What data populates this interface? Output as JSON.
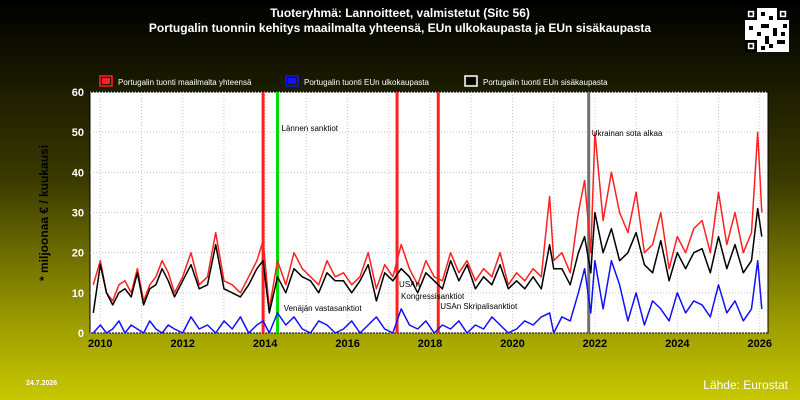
{
  "header": {
    "title": "Tuoteryhmä: Lannoitteet, valmistetut (Sitc 56)",
    "subtitle": "Portugalin tuonnin kehitys maailmalta yhteensä, EUn ulkokaupasta ja EUn sisäkaupasta"
  },
  "footer": {
    "date": "24.7.2026",
    "source": "Lähde: Eurostat"
  },
  "colors": {
    "world": "#ff2020",
    "extra_eu": "#1010ff",
    "intra_eu": "#000000",
    "green_marker": "#00dd00",
    "grey_marker": "#707070"
  },
  "chart_data": {
    "type": "line",
    "ylabel": "* miljoonaa € / kuukausi",
    "ylim": [
      0,
      60
    ],
    "yticks": [
      0,
      10,
      20,
      30,
      40,
      50,
      60
    ],
    "xlim": [
      2009.75,
      2026.2
    ],
    "xticks": [
      "2010",
      "2012",
      "2014",
      "2016",
      "2018",
      "2020",
      "2022",
      "2024",
      "2026"
    ],
    "grid": true,
    "legend_position": "top",
    "series": [
      {
        "name": "Portugalin tuonti maailmalta yhteensä",
        "color": "#ff2020",
        "x": [
          2009.83,
          2010.0,
          2010.15,
          2010.3,
          2010.45,
          2010.6,
          2010.75,
          2010.9,
          2011.05,
          2011.2,
          2011.35,
          2011.5,
          2011.65,
          2011.8,
          2012.0,
          2012.2,
          2012.4,
          2012.6,
          2012.8,
          2013.0,
          2013.2,
          2013.4,
          2013.6,
          2013.8,
          2013.95,
          2014.1,
          2014.3,
          2014.5,
          2014.7,
          2014.9,
          2015.1,
          2015.3,
          2015.5,
          2015.7,
          2015.9,
          2016.1,
          2016.3,
          2016.5,
          2016.7,
          2016.9,
          2017.1,
          2017.3,
          2017.5,
          2017.7,
          2017.9,
          2018.1,
          2018.3,
          2018.5,
          2018.7,
          2018.9,
          2019.1,
          2019.3,
          2019.5,
          2019.7,
          2019.9,
          2020.1,
          2020.3,
          2020.5,
          2020.7,
          2020.9,
          2021.0,
          2021.2,
          2021.4,
          2021.6,
          2021.75,
          2021.9,
          2022.0,
          2022.2,
          2022.4,
          2022.6,
          2022.8,
          2023.0,
          2023.2,
          2023.4,
          2023.6,
          2023.8,
          2024.0,
          2024.2,
          2024.4,
          2024.6,
          2024.8,
          2025.0,
          2025.2,
          2025.4,
          2025.6,
          2025.8,
          2025.95,
          2026.05
        ],
        "values": [
          12,
          18,
          10,
          8,
          12,
          13,
          10,
          16,
          8,
          12,
          14,
          18,
          15,
          10,
          14,
          20,
          12,
          14,
          25,
          13,
          12,
          10,
          14,
          18,
          23,
          6,
          18,
          12,
          20,
          16,
          14,
          12,
          18,
          14,
          15,
          12,
          14,
          20,
          11,
          17,
          14,
          22,
          16,
          12,
          18,
          14,
          13,
          20,
          15,
          18,
          13,
          16,
          14,
          20,
          12,
          15,
          13,
          16,
          14,
          34,
          18,
          20,
          15,
          30,
          38,
          20,
          50,
          28,
          40,
          30,
          25,
          35,
          20,
          22,
          30,
          16,
          24,
          20,
          26,
          28,
          20,
          35,
          22,
          30,
          20,
          25,
          50,
          30
        ]
      },
      {
        "name": "Portugalin tuonti EUn ulkokaupasta",
        "color": "#1010ff",
        "x": [
          2009.83,
          2010.0,
          2010.15,
          2010.3,
          2010.45,
          2010.6,
          2010.75,
          2010.9,
          2011.05,
          2011.2,
          2011.35,
          2011.5,
          2011.65,
          2011.8,
          2012.0,
          2012.2,
          2012.4,
          2012.6,
          2012.8,
          2013.0,
          2013.2,
          2013.4,
          2013.6,
          2013.8,
          2013.95,
          2014.1,
          2014.3,
          2014.5,
          2014.7,
          2014.9,
          2015.1,
          2015.3,
          2015.5,
          2015.7,
          2015.9,
          2016.1,
          2016.3,
          2016.5,
          2016.7,
          2016.9,
          2017.1,
          2017.3,
          2017.5,
          2017.7,
          2017.9,
          2018.1,
          2018.3,
          2018.5,
          2018.7,
          2018.9,
          2019.1,
          2019.3,
          2019.5,
          2019.7,
          2019.9,
          2020.1,
          2020.3,
          2020.5,
          2020.7,
          2020.9,
          2021.0,
          2021.2,
          2021.4,
          2021.6,
          2021.75,
          2021.9,
          2022.0,
          2022.2,
          2022.4,
          2022.6,
          2022.8,
          2023.0,
          2023.2,
          2023.4,
          2023.6,
          2023.8,
          2024.0,
          2024.2,
          2024.4,
          2024.6,
          2024.8,
          2025.0,
          2025.2,
          2025.4,
          2025.6,
          2025.8,
          2025.95,
          2026.05
        ],
        "values": [
          0,
          2,
          0,
          1,
          3,
          0,
          2,
          1,
          0,
          3,
          1,
          0,
          2,
          1,
          0,
          4,
          1,
          2,
          0,
          3,
          1,
          4,
          0,
          2,
          3,
          0,
          5,
          2,
          4,
          1,
          0,
          3,
          2,
          0,
          1,
          3,
          0,
          2,
          4,
          1,
          0,
          6,
          2,
          1,
          3,
          0,
          2,
          1,
          3,
          0,
          2,
          1,
          4,
          2,
          0,
          1,
          3,
          2,
          4,
          5,
          0,
          4,
          3,
          10,
          16,
          5,
          18,
          6,
          18,
          12,
          3,
          10,
          2,
          8,
          6,
          3,
          10,
          5,
          8,
          7,
          4,
          12,
          5,
          8,
          3,
          6,
          18,
          6
        ]
      },
      {
        "name": "Portugalin tuonti EUn sisäkaupasta",
        "color": "#000000",
        "x": [
          2009.83,
          2010.0,
          2010.15,
          2010.3,
          2010.45,
          2010.6,
          2010.75,
          2010.9,
          2011.05,
          2011.2,
          2011.35,
          2011.5,
          2011.65,
          2011.8,
          2012.0,
          2012.2,
          2012.4,
          2012.6,
          2012.8,
          2013.0,
          2013.2,
          2013.4,
          2013.6,
          2013.8,
          2013.95,
          2014.1,
          2014.3,
          2014.5,
          2014.7,
          2014.9,
          2015.1,
          2015.3,
          2015.5,
          2015.7,
          2015.9,
          2016.1,
          2016.3,
          2016.5,
          2016.7,
          2016.9,
          2017.1,
          2017.3,
          2017.5,
          2017.7,
          2017.9,
          2018.1,
          2018.3,
          2018.5,
          2018.7,
          2018.9,
          2019.1,
          2019.3,
          2019.5,
          2019.7,
          2019.9,
          2020.1,
          2020.3,
          2020.5,
          2020.7,
          2020.9,
          2021.0,
          2021.2,
          2021.4,
          2021.6,
          2021.75,
          2021.9,
          2022.0,
          2022.2,
          2022.4,
          2022.6,
          2022.8,
          2023.0,
          2023.2,
          2023.4,
          2023.6,
          2023.8,
          2024.0,
          2024.2,
          2024.4,
          2024.6,
          2024.8,
          2025.0,
          2025.2,
          2025.4,
          2025.6,
          2025.8,
          2025.95,
          2026.05
        ],
        "values": [
          5,
          17,
          10,
          7,
          10,
          11,
          9,
          15,
          7,
          11,
          12,
          16,
          13,
          9,
          13,
          17,
          11,
          12,
          22,
          11,
          10,
          9,
          12,
          16,
          18,
          5,
          14,
          10,
          16,
          14,
          13,
          10,
          15,
          13,
          13,
          10,
          13,
          17,
          8,
          15,
          13,
          16,
          14,
          10,
          15,
          13,
          11,
          18,
          13,
          17,
          11,
          14,
          12,
          17,
          11,
          13,
          11,
          14,
          11,
          22,
          16,
          16,
          12,
          20,
          24,
          15,
          30,
          20,
          26,
          18,
          20,
          25,
          17,
          15,
          23,
          13,
          20,
          16,
          20,
          21,
          15,
          24,
          16,
          22,
          15,
          18,
          31,
          24
        ]
      }
    ],
    "event_lines": [
      {
        "x": 2013.95,
        "color": "#ff2020",
        "label": ""
      },
      {
        "x": 2014.3,
        "color": "#00dd00",
        "label": "Lännen sanktiot"
      },
      {
        "x": 2017.2,
        "color": "#ff2020",
        "label": "USAn Kongressisanktiot"
      },
      {
        "x": 2018.2,
        "color": "#ff2020",
        "label": "USAn Skripalisanktiot"
      },
      {
        "x": 2021.85,
        "color": "#707070",
        "label": "Ukrainan sota alkaa"
      }
    ],
    "annotations": [
      {
        "text": "Venäjän vastasanktiot",
        "x": 2014.45,
        "y": 7
      }
    ]
  }
}
